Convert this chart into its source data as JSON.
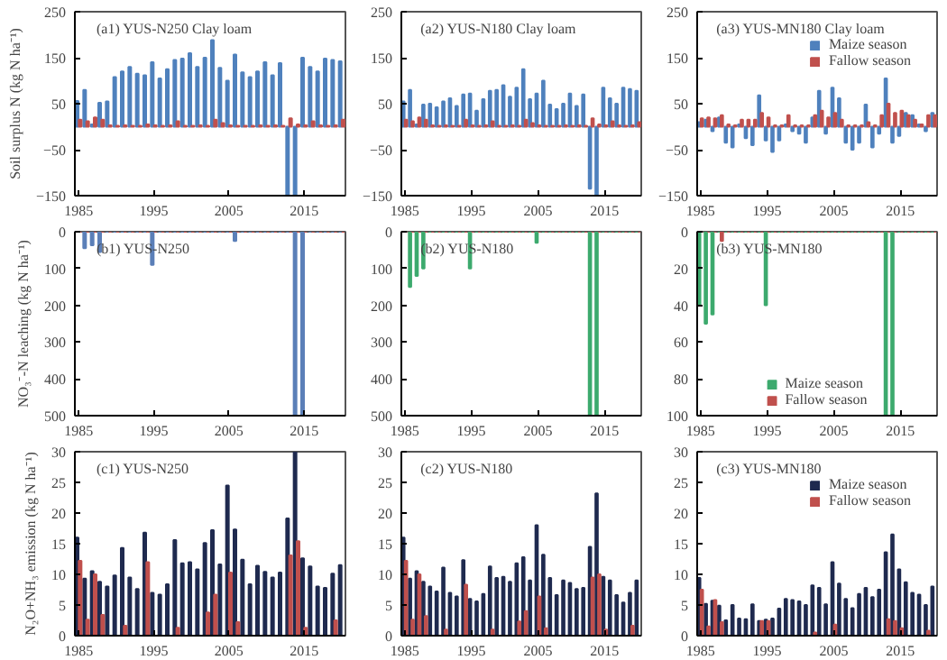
{
  "chart_data": [
    {
      "type": "bar",
      "title": "(a1) YUS-N250  Clay loam",
      "ylabel": "Soil surplus N (kg N ha⁻¹)",
      "xlim": [
        1984.5,
        2020.5
      ],
      "xticks": [
        1985,
        1995,
        2005,
        2015
      ],
      "ylim": [
        -150,
        250
      ],
      "yticks": [
        -150,
        -50,
        50,
        150,
        250
      ],
      "x": [
        1985,
        1986,
        1987,
        1988,
        1989,
        1990,
        1991,
        1992,
        1993,
        1994,
        1995,
        1996,
        1997,
        1998,
        1999,
        2000,
        2001,
        2002,
        2003,
        2004,
        2005,
        2006,
        2007,
        2008,
        2009,
        2010,
        2011,
        2012,
        2013,
        2014,
        2015,
        2016,
        2017,
        2018,
        2019,
        2020
      ],
      "series": [
        {
          "color": "#4f81bd",
          "values": [
            56,
            80,
            5,
            52,
            55,
            108,
            120,
            130,
            115,
            112,
            140,
            105,
            125,
            145,
            148,
            160,
            130,
            150,
            188,
            128,
            100,
            157,
            118,
            108,
            120,
            140,
            112,
            138,
            -150,
            -150,
            150,
            130,
            120,
            148,
            145,
            142
          ]
        },
        {
          "color": "#c0504d",
          "values": [
            15,
            12,
            20,
            15,
            3,
            2,
            3,
            2,
            2,
            5,
            3,
            2,
            3,
            12,
            2,
            2,
            3,
            2,
            15,
            8,
            3,
            2,
            2,
            2,
            3,
            2,
            3,
            2,
            18,
            5,
            3,
            12,
            3,
            2,
            3,
            15
          ]
        }
      ]
    },
    {
      "type": "bar",
      "title": "(a2) YUS-N180  Clay loam",
      "xlim": [
        1984.5,
        2020.5
      ],
      "xticks": [
        1985,
        1995,
        2005,
        2015
      ],
      "ylim": [
        -150,
        250
      ],
      "yticks": [
        -150,
        -50,
        50,
        150,
        250
      ],
      "x": [
        1985,
        1986,
        1987,
        1988,
        1989,
        1990,
        1991,
        1992,
        1993,
        1994,
        1995,
        1996,
        1997,
        1998,
        1999,
        2000,
        2001,
        2002,
        2003,
        2004,
        2005,
        2006,
        2007,
        2008,
        2009,
        2010,
        2011,
        2012,
        2013,
        2014,
        2015,
        2016,
        2017,
        2018,
        2019,
        2020
      ],
      "series": [
        {
          "color": "#4f81bd",
          "values": [
            55,
            80,
            5,
            48,
            50,
            42,
            55,
            62,
            45,
            70,
            72,
            35,
            60,
            78,
            80,
            90,
            65,
            85,
            125,
            60,
            72,
            100,
            48,
            38,
            50,
            72,
            45,
            70,
            -135,
            -150,
            85,
            62,
            50,
            85,
            82,
            78
          ]
        },
        {
          "color": "#c0504d",
          "values": [
            15,
            12,
            20,
            15,
            3,
            2,
            3,
            2,
            2,
            15,
            3,
            2,
            3,
            12,
            2,
            2,
            3,
            2,
            15,
            8,
            3,
            2,
            2,
            2,
            3,
            2,
            3,
            2,
            18,
            5,
            3,
            12,
            3,
            2,
            3,
            10
          ]
        }
      ]
    },
    {
      "type": "bar",
      "title": "(a3) YUS-MN180  Clay loam",
      "legend": "top right",
      "xlim": [
        1984.5,
        2020.5
      ],
      "xticks": [
        1985,
        1995,
        2005,
        2015
      ],
      "ylim": [
        -150,
        250
      ],
      "yticks": [
        -150,
        -50,
        50,
        150,
        250
      ],
      "x": [
        1985,
        1986,
        1987,
        1988,
        1989,
        1990,
        1991,
        1992,
        1993,
        1994,
        1995,
        1996,
        1997,
        1998,
        1999,
        2000,
        2001,
        2002,
        2003,
        2004,
        2005,
        2006,
        2007,
        2008,
        2009,
        2010,
        2011,
        2012,
        2013,
        2014,
        2015,
        2016,
        2017,
        2018,
        2019,
        2020
      ],
      "series": [
        {
          "name": "Maize season",
          "color": "#4f81bd",
          "values": [
            10,
            15,
            -10,
            20,
            -35,
            -45,
            5,
            -25,
            -40,
            68,
            -30,
            -55,
            -30,
            5,
            -10,
            -15,
            -35,
            20,
            78,
            -15,
            85,
            62,
            -35,
            -50,
            -35,
            48,
            -45,
            -15,
            105,
            -35,
            -20,
            30,
            25,
            5,
            -10,
            30
          ]
        },
        {
          "name": "Fallow season",
          "color": "#c0504d",
          "values": [
            18,
            20,
            18,
            25,
            5,
            3,
            15,
            15,
            15,
            30,
            20,
            3,
            3,
            25,
            3,
            3,
            3,
            25,
            35,
            20,
            30,
            15,
            3,
            3,
            3,
            10,
            3,
            25,
            50,
            30,
            35,
            25,
            15,
            5,
            25,
            25
          ]
        }
      ]
    },
    {
      "type": "bar",
      "title": "(b1) YUS-N250",
      "ylabel": "NO₃⁻-N leaching (kg N ha⁻¹)",
      "xlim": [
        1984.5,
        2020.5
      ],
      "xticks": [
        1985,
        1995,
        2005,
        2015
      ],
      "ylim": [
        500,
        0
      ],
      "yticks": [
        0,
        100,
        200,
        300,
        400,
        500
      ],
      "x": [
        1985,
        1986,
        1987,
        1988,
        1989,
        1990,
        1991,
        1992,
        1993,
        1994,
        1995,
        1996,
        1997,
        1998,
        1999,
        2000,
        2001,
        2002,
        2003,
        2004,
        2005,
        2006,
        2007,
        2008,
        2009,
        2010,
        2011,
        2012,
        2013,
        2014,
        2015,
        2016,
        2017,
        2018,
        2019,
        2020
      ],
      "series": [
        {
          "color": "#5b7fb8",
          "values": [
            0,
            45,
            37,
            55,
            0,
            0,
            0,
            0,
            0,
            0,
            90,
            0,
            0,
            0,
            0,
            0,
            0,
            0,
            0,
            0,
            0,
            25,
            0,
            0,
            0,
            0,
            0,
            0,
            0,
            500,
            500,
            0,
            0,
            0,
            0,
            0
          ]
        },
        {
          "color": "#c0504d",
          "values": [
            0,
            0,
            0,
            0,
            0,
            0,
            0,
            0,
            0,
            0,
            0,
            0,
            0,
            0,
            0,
            0,
            0,
            0,
            0,
            0,
            0,
            0,
            0,
            0,
            0,
            0,
            0,
            0,
            0,
            0,
            0,
            0,
            0,
            0,
            0,
            0
          ]
        }
      ]
    },
    {
      "type": "bar",
      "title": "(b2) YUS-N180",
      "xlim": [
        1984.5,
        2020.5
      ],
      "xticks": [
        1985,
        1995,
        2005,
        2015
      ],
      "ylim": [
        500,
        0
      ],
      "yticks": [
        0,
        100,
        200,
        300,
        400,
        500
      ],
      "x": [
        1985,
        1986,
        1987,
        1988,
        1989,
        1990,
        1991,
        1992,
        1993,
        1994,
        1995,
        1996,
        1997,
        1998,
        1999,
        2000,
        2001,
        2002,
        2003,
        2004,
        2005,
        2006,
        2007,
        2008,
        2009,
        2010,
        2011,
        2012,
        2013,
        2014,
        2015,
        2016,
        2017,
        2018,
        2019,
        2020
      ],
      "series": [
        {
          "color": "#3daa6e",
          "values": [
            0,
            150,
            120,
            100,
            0,
            0,
            0,
            0,
            0,
            0,
            100,
            0,
            0,
            0,
            0,
            0,
            0,
            0,
            0,
            0,
            30,
            0,
            0,
            0,
            0,
            0,
            0,
            0,
            500,
            500,
            0,
            0,
            0,
            0,
            0,
            0
          ]
        },
        {
          "color": "#c0504d",
          "values": [
            0,
            0,
            0,
            0,
            0,
            0,
            0,
            0,
            0,
            0,
            0,
            0,
            0,
            0,
            0,
            0,
            0,
            0,
            0,
            0,
            0,
            0,
            0,
            0,
            0,
            0,
            0,
            0,
            0,
            0,
            0,
            0,
            0,
            0,
            0,
            0
          ]
        }
      ]
    },
    {
      "type": "bar",
      "title": "(b3) YUS-MN180",
      "legend": "bottom",
      "xlim": [
        1984.5,
        2020.5
      ],
      "xticks": [
        1985,
        1995,
        2005,
        2015
      ],
      "ylim": [
        100,
        0
      ],
      "yticks": [
        0,
        20,
        40,
        60,
        80,
        100
      ],
      "x": [
        1985,
        1986,
        1987,
        1988,
        1989,
        1990,
        1991,
        1992,
        1993,
        1994,
        1995,
        1996,
        1997,
        1998,
        1999,
        2000,
        2001,
        2002,
        2003,
        2004,
        2005,
        2006,
        2007,
        2008,
        2009,
        2010,
        2011,
        2012,
        2013,
        2014,
        2015,
        2016,
        2017,
        2018,
        2019,
        2020
      ],
      "series": [
        {
          "name": "Maize season",
          "color": "#3daa6e",
          "values": [
            40,
            50,
            45,
            0,
            0,
            0,
            0,
            0,
            0,
            0,
            40,
            0,
            0,
            0,
            0,
            0,
            0,
            0,
            0,
            0,
            0,
            0,
            0,
            0,
            0,
            0,
            0,
            0,
            100,
            100,
            0,
            0,
            0,
            0,
            0,
            0
          ]
        },
        {
          "name": "Fallow season",
          "color": "#c0504d",
          "values": [
            0,
            0,
            0,
            5,
            0,
            0,
            0,
            0,
            0,
            0,
            0,
            0,
            0,
            0,
            0,
            0,
            0,
            0,
            0,
            0,
            0,
            0,
            0,
            0,
            0,
            0,
            0,
            0,
            0,
            0,
            0,
            0,
            0,
            0,
            0,
            0
          ]
        }
      ]
    },
    {
      "type": "bar",
      "title": "(c1) YUS-N250",
      "ylabel": "N₂O+NH₃ emission (kg N ha⁻¹)",
      "xlim": [
        1984.5,
        2020.5
      ],
      "xticks": [
        1985,
        1995,
        2005,
        2015
      ],
      "ylim": [
        0,
        30
      ],
      "yticks": [
        0,
        5,
        10,
        15,
        20,
        25,
        30
      ],
      "x": [
        1985,
        1986,
        1987,
        1988,
        1989,
        1990,
        1991,
        1992,
        1993,
        1994,
        1995,
        1996,
        1997,
        1998,
        1999,
        2000,
        2001,
        2002,
        2003,
        2004,
        2005,
        2006,
        2007,
        2008,
        2009,
        2010,
        2011,
        2012,
        2013,
        2014,
        2015,
        2016,
        2017,
        2018,
        2019,
        2020
      ],
      "series": [
        {
          "color": "#1f2a4f",
          "values": [
            16,
            9.3,
            10.5,
            8.8,
            8,
            9.8,
            14.3,
            9.5,
            7.6,
            16.8,
            7,
            6.7,
            8.4,
            15.6,
            11.8,
            12,
            10.8,
            15.1,
            17.2,
            11.6,
            24.5,
            17.3,
            12.4,
            8.4,
            11.4,
            10.4,
            9.5,
            10.3,
            19.1,
            30,
            12.6,
            11.3,
            8,
            7.8,
            10.1,
            11.5
          ]
        },
        {
          "color": "#c0504d",
          "values": [
            12.2,
            2.6,
            10,
            3.4,
            0,
            0,
            1.6,
            0,
            0,
            12,
            0,
            0,
            0,
            1.3,
            0,
            0,
            0,
            3.8,
            6.7,
            0,
            10.3,
            2.2,
            0,
            0,
            0,
            0,
            0,
            0,
            13.1,
            15.4,
            1.3,
            0,
            0,
            0,
            2.5,
            0
          ]
        }
      ]
    },
    {
      "type": "bar",
      "title": "(c2) YUS-N180",
      "xlim": [
        1984.5,
        2020.5
      ],
      "xticks": [
        1985,
        1995,
        2005,
        2015
      ],
      "ylim": [
        0,
        30
      ],
      "yticks": [
        0,
        5,
        10,
        15,
        20,
        25,
        30
      ],
      "x": [
        1985,
        1986,
        1987,
        1988,
        1989,
        1990,
        1991,
        1992,
        1993,
        1994,
        1995,
        1996,
        1997,
        1998,
        1999,
        2000,
        2001,
        2002,
        2003,
        2004,
        2005,
        2006,
        2007,
        2008,
        2009,
        2010,
        2011,
        2012,
        2013,
        2014,
        2015,
        2016,
        2017,
        2018,
        2019,
        2020
      ],
      "series": [
        {
          "color": "#1f2a4f",
          "values": [
            16,
            9.3,
            10.5,
            8.8,
            8,
            7.2,
            11.1,
            7,
            6.4,
            12.3,
            6,
            5.6,
            6.8,
            11.3,
            9.4,
            9.6,
            8.8,
            11.8,
            12.8,
            9,
            18,
            13.2,
            9.4,
            6.6,
            9,
            8.6,
            7.6,
            7.8,
            14.5,
            23.2,
            9.6,
            9,
            6.6,
            5.4,
            7,
            9
          ]
        },
        {
          "color": "#c0504d",
          "values": [
            12.2,
            2.6,
            10,
            3.2,
            0,
            0,
            1,
            0,
            0,
            8.3,
            0,
            0,
            0,
            1,
            0,
            0,
            0,
            2.3,
            4,
            0,
            6.4,
            1.2,
            0,
            0,
            0,
            0,
            0,
            0,
            9.5,
            10,
            1,
            0,
            0,
            0,
            1.6,
            0
          ]
        }
      ]
    },
    {
      "type": "bar",
      "title": "(c3) YUS-MN180",
      "legend": "top right",
      "xlim": [
        1984.5,
        2020.5
      ],
      "xticks": [
        1985,
        1995,
        2005,
        2015
      ],
      "ylim": [
        0,
        30
      ],
      "yticks": [
        0,
        5,
        10,
        15,
        20,
        25,
        30
      ],
      "x": [
        1985,
        1986,
        1987,
        1988,
        1989,
        1990,
        1991,
        1992,
        1993,
        1994,
        1995,
        1996,
        1997,
        1998,
        1999,
        2000,
        2001,
        2002,
        2003,
        2004,
        2005,
        2006,
        2007,
        2008,
        2009,
        2010,
        2011,
        2012,
        2013,
        2014,
        2015,
        2016,
        2017,
        2018,
        2019,
        2020
      ],
      "series": [
        {
          "name": "Maize season",
          "color": "#1f2a4f",
          "values": [
            9.4,
            5.2,
            5.7,
            4.9,
            2.5,
            5,
            2.8,
            2.7,
            5.1,
            2.4,
            2.6,
            2.8,
            4.4,
            6,
            5.8,
            5.6,
            5,
            8.2,
            7.8,
            5.1,
            12,
            8.5,
            6,
            4.5,
            6.8,
            7.8,
            6.3,
            7.5,
            13.6,
            16.5,
            10.8,
            8.7,
            7,
            6.7,
            5,
            8
          ]
        },
        {
          "name": "Fallow season",
          "color": "#c0504d",
          "values": [
            7.5,
            1.5,
            5.8,
            2.2,
            0,
            0,
            0,
            0,
            0,
            2.4,
            2.4,
            0,
            0,
            0,
            0,
            0,
            0,
            0.5,
            0,
            0,
            1.8,
            0,
            0,
            0,
            0,
            0,
            0,
            0,
            2.7,
            2.4,
            1.2,
            0,
            0,
            0,
            0.8,
            0
          ]
        }
      ]
    }
  ]
}
